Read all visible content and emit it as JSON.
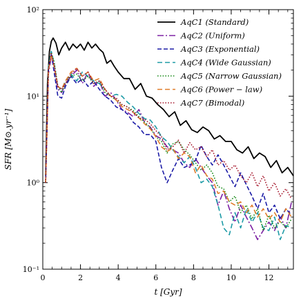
{
  "chart_data": {
    "type": "line",
    "xlabel": "t [Gyr]",
    "ylabel": "SFR [M⊙.yr⁻¹]",
    "xlim": [
      0,
      13.3
    ],
    "ylim": [
      0.1,
      100
    ],
    "yscale": "log",
    "x_ticks": [
      0,
      2,
      4,
      6,
      8,
      10,
      12
    ],
    "x_tick_labels": [
      "0",
      "2",
      "4",
      "6",
      "8",
      "10",
      "12"
    ],
    "y_ticks": [
      0.1,
      1,
      10,
      100
    ],
    "y_tick_labels": [
      "10⁻¹",
      "10⁰",
      "10¹",
      "10²"
    ],
    "grid": false,
    "legend_position": "top-right",
    "series": [
      {
        "name": "AqC1 (Standard)",
        "color": "#000000",
        "dash": "solid",
        "x": [
          0.15,
          0.25,
          0.35,
          0.45,
          0.55,
          0.7,
          0.85,
          1.0,
          1.2,
          1.4,
          1.6,
          1.8,
          2.0,
          2.2,
          2.4,
          2.6,
          2.8,
          3.0,
          3.2,
          3.4,
          3.6,
          3.8,
          4.0,
          4.3,
          4.6,
          4.9,
          5.2,
          5.5,
          5.8,
          6.1,
          6.4,
          6.7,
          7.0,
          7.3,
          7.6,
          7.9,
          8.2,
          8.5,
          8.8,
          9.1,
          9.4,
          9.7,
          10.0,
          10.3,
          10.6,
          10.9,
          11.2,
          11.5,
          11.8,
          12.1,
          12.4,
          12.7,
          13.0,
          13.3
        ],
        "y": [
          1.2,
          14,
          33,
          43,
          47,
          41,
          30,
          36,
          42,
          34,
          40,
          36,
          40,
          34,
          42,
          36,
          40,
          35,
          32,
          24,
          26,
          22,
          19,
          16,
          16,
          12,
          14,
          10,
          9.5,
          8,
          7,
          5.8,
          6.6,
          4.6,
          5.2,
          4.1,
          3.8,
          4.4,
          4,
          3.2,
          3.5,
          3.0,
          3.0,
          2.4,
          2.2,
          2.6,
          1.9,
          2.2,
          2.0,
          1.5,
          1.8,
          1.3,
          1.5,
          1.2
        ]
      },
      {
        "name": "AqC2 (Uniform)",
        "color": "#7b1fa2",
        "dash": "dashdot",
        "x": [
          0.15,
          0.3,
          0.45,
          0.6,
          0.8,
          1.0,
          1.2,
          1.5,
          1.8,
          2.1,
          2.4,
          2.7,
          3.0,
          3.3,
          3.6,
          3.9,
          4.2,
          4.5,
          4.8,
          5.1,
          5.4,
          5.7,
          6.0,
          6.3,
          6.6,
          6.9,
          7.2,
          7.5,
          7.8,
          8.1,
          8.4,
          8.7,
          9.0,
          9.3,
          9.6,
          9.9,
          10.2,
          10.5,
          10.8,
          11.1,
          11.4,
          11.7,
          12.0,
          12.3,
          12.6,
          12.9,
          13.2
        ],
        "y": [
          1.0,
          18,
          29,
          22,
          12,
          11,
          14,
          17,
          20,
          14,
          19,
          13,
          15,
          10,
          11,
          9,
          7,
          6.5,
          5.8,
          7,
          5,
          4.4,
          3.5,
          3.2,
          2.6,
          2.4,
          2.2,
          1.7,
          1.5,
          1.9,
          1.5,
          1.2,
          1.0,
          0.55,
          0.8,
          0.5,
          0.35,
          0.55,
          0.4,
          0.3,
          0.22,
          0.28,
          0.35,
          0.28,
          0.4,
          0.3,
          0.6
        ]
      },
      {
        "name": "AqC3 (Exponential)",
        "color": "#1a1aa6",
        "dash": "longdash",
        "x": [
          0.15,
          0.3,
          0.45,
          0.6,
          0.8,
          1.0,
          1.2,
          1.5,
          1.8,
          2.1,
          2.4,
          2.7,
          3.0,
          3.3,
          3.6,
          3.9,
          4.2,
          4.5,
          4.8,
          5.1,
          5.4,
          5.7,
          6.0,
          6.3,
          6.6,
          6.9,
          7.2,
          7.5,
          7.8,
          8.1,
          8.4,
          8.7,
          9.0,
          9.3,
          9.6,
          9.9,
          10.2,
          10.5,
          10.8,
          11.1,
          11.4,
          11.7,
          12.0,
          12.3,
          12.6,
          12.9,
          13.2
        ],
        "y": [
          1.0,
          20,
          31,
          19,
          10,
          9.5,
          13,
          17,
          14,
          16,
          13,
          15,
          12,
          10,
          9,
          7.5,
          7,
          6.2,
          5.0,
          4.4,
          3.6,
          3.6,
          3.0,
          1.5,
          1.0,
          1.4,
          1.9,
          1.5,
          1.6,
          1.8,
          2.7,
          2.0,
          1.6,
          2.1,
          1.6,
          1.2,
          0.9,
          1.3,
          0.95,
          0.7,
          0.5,
          0.75,
          0.45,
          0.55,
          0.38,
          0.5,
          0.42
        ]
      },
      {
        "name": "AqC4 (Wide Gaussian)",
        "color": "#1c9aa6",
        "dash": "dashed",
        "x": [
          0.15,
          0.3,
          0.45,
          0.6,
          0.8,
          1.0,
          1.2,
          1.5,
          1.8,
          2.1,
          2.4,
          2.7,
          3.0,
          3.3,
          3.6,
          3.9,
          4.2,
          4.5,
          4.8,
          5.1,
          5.4,
          5.7,
          6.0,
          6.3,
          6.6,
          6.9,
          7.2,
          7.5,
          7.8,
          8.1,
          8.4,
          8.7,
          9.0,
          9.3,
          9.6,
          9.9,
          10.2,
          10.5,
          10.8,
          11.1,
          11.4,
          11.7,
          12.0,
          12.3,
          12.6,
          12.9,
          13.2
        ],
        "y": [
          1.0,
          22,
          33,
          24,
          13,
          12,
          15,
          18,
          15,
          19,
          17,
          15,
          14,
          12,
          10,
          10.5,
          10,
          8.5,
          7.5,
          6.3,
          5.5,
          5.3,
          4.4,
          3.4,
          3.0,
          2.4,
          2.0,
          1.7,
          2.0,
          1.5,
          1.0,
          1.1,
          0.9,
          0.55,
          0.3,
          0.25,
          0.45,
          0.3,
          0.5,
          0.35,
          0.45,
          0.3,
          0.28,
          0.4,
          0.22,
          0.32,
          0.3
        ]
      },
      {
        "name": "AqC5 (Narrow Gaussian)",
        "color": "#1a8a1a",
        "dash": "dotted",
        "x": [
          0.15,
          0.3,
          0.45,
          0.6,
          0.8,
          1.0,
          1.2,
          1.5,
          1.8,
          2.1,
          2.4,
          2.7,
          3.0,
          3.3,
          3.6,
          3.9,
          4.2,
          4.5,
          4.8,
          5.1,
          5.4,
          5.7,
          6.0,
          6.3,
          6.6,
          6.9,
          7.2,
          7.5,
          7.8,
          8.1,
          8.4,
          8.7,
          9.0,
          9.3,
          9.6,
          9.9,
          10.2,
          10.5,
          10.8,
          11.1,
          11.4,
          11.7,
          12.0,
          12.3,
          12.6,
          12.9,
          13.2
        ],
        "y": [
          1.0,
          21,
          32,
          25,
          13,
          11,
          14,
          17,
          18,
          15,
          17,
          14,
          15,
          11,
          10,
          9,
          8,
          7.5,
          6.8,
          5.8,
          5.0,
          4.3,
          3.4,
          3.0,
          2.2,
          2.8,
          3.0,
          2.4,
          2.1,
          1.7,
          1.4,
          1.6,
          1.3,
          0.9,
          0.85,
          0.6,
          0.7,
          0.45,
          0.55,
          0.38,
          0.5,
          0.28,
          0.42,
          0.3,
          0.36,
          0.3,
          0.38
        ]
      },
      {
        "name": "AqC6 (Power − law)",
        "color": "#e07b29",
        "dash": "dashed",
        "x": [
          0.15,
          0.3,
          0.45,
          0.6,
          0.8,
          1.0,
          1.2,
          1.5,
          1.8,
          2.1,
          2.4,
          2.7,
          3.0,
          3.3,
          3.6,
          3.9,
          4.2,
          4.5,
          4.8,
          5.1,
          5.4,
          5.7,
          6.0,
          6.3,
          6.6,
          6.9,
          7.2,
          7.5,
          7.8,
          8.1,
          8.4,
          8.7,
          9.0,
          9.3,
          9.6,
          9.9,
          10.2,
          10.5,
          10.8,
          11.1,
          11.4,
          11.7,
          12.0,
          12.3,
          12.6,
          12.9,
          13.2
        ],
        "y": [
          1.0,
          20,
          30,
          22,
          13,
          12,
          15,
          19,
          21,
          17,
          19,
          15,
          16,
          12,
          10,
          9,
          7.6,
          7,
          6.5,
          5.6,
          4.8,
          4.2,
          3.4,
          2.6,
          2.3,
          2.5,
          1.9,
          2.2,
          2.0,
          1.3,
          1.6,
          1.2,
          1.1,
          0.75,
          0.8,
          0.6,
          0.55,
          0.6,
          0.45,
          0.55,
          0.4,
          0.5,
          0.38,
          0.45,
          0.35,
          0.5,
          0.4
        ]
      },
      {
        "name": "AqC7 (Bimodal)",
        "color": "#a6192e",
        "dash": "dotted",
        "x": [
          0.15,
          0.3,
          0.45,
          0.6,
          0.8,
          1.0,
          1.2,
          1.5,
          1.8,
          2.1,
          2.4,
          2.7,
          3.0,
          3.3,
          3.6,
          3.9,
          4.2,
          4.5,
          4.8,
          5.1,
          5.4,
          5.7,
          6.0,
          6.3,
          6.6,
          6.9,
          7.2,
          7.5,
          7.8,
          8.1,
          8.4,
          8.7,
          9.0,
          9.3,
          9.6,
          9.9,
          10.2,
          10.5,
          10.8,
          11.1,
          11.4,
          11.7,
          12.0,
          12.3,
          12.6,
          12.9,
          13.2
        ],
        "y": [
          1.0,
          21,
          31,
          23,
          13,
          12,
          14,
          18,
          21,
          17,
          19,
          14,
          15,
          12,
          10,
          9.5,
          8,
          7.5,
          6.5,
          5.6,
          5.4,
          4.8,
          4.0,
          3.4,
          2.4,
          2.6,
          3.1,
          2.2,
          2.9,
          2.4,
          2.6,
          2.0,
          2.4,
          1.6,
          1.8,
          1.4,
          1.6,
          1.2,
          1.0,
          1.3,
          0.9,
          1.2,
          0.8,
          1.0,
          0.7,
          0.85,
          0.65
        ]
      }
    ]
  }
}
